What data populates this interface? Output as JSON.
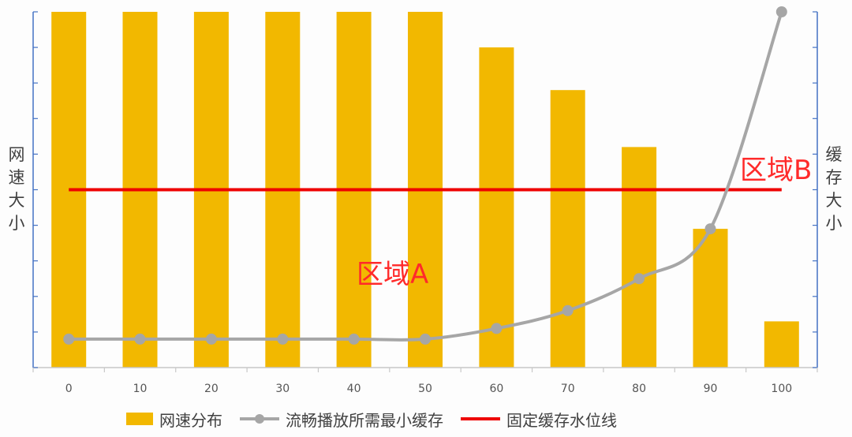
{
  "chart_data": {
    "type": "bar",
    "categories": [
      "0",
      "10",
      "20",
      "30",
      "40",
      "50",
      "60",
      "70",
      "80",
      "90",
      "100"
    ],
    "ylabel_left": "网速大小",
    "ylabel_right": "缓存大小",
    "series": [
      {
        "name": "网速分布",
        "type": "bar",
        "axis": "left",
        "color": "#f2b800",
        "values": [
          10,
          10,
          10,
          10,
          10,
          10,
          9.0,
          7.8,
          6.2,
          3.9,
          1.3
        ]
      },
      {
        "name": "流畅播放所需最小缓存",
        "type": "line",
        "axis": "right",
        "color": "#a6a6a6",
        "markers": true,
        "values": [
          0.8,
          0.8,
          0.8,
          0.8,
          0.8,
          0.8,
          1.1,
          1.6,
          2.5,
          3.9,
          10.0
        ]
      },
      {
        "name": "固定缓存水位线",
        "type": "line",
        "axis": "right",
        "color": "#ee0000",
        "markers": false,
        "values": [
          5,
          5,
          5,
          5,
          5,
          5,
          5,
          5,
          5,
          5,
          5
        ]
      }
    ],
    "ylim_left": [
      0,
      10
    ],
    "ylim_right": [
      0,
      10
    ],
    "ytick_count": 10,
    "grid": false,
    "legend_position": "bottom",
    "annotations": [
      "区域A",
      "区域B"
    ]
  },
  "colors": {
    "axis": "#4472c4",
    "bar": "#f2b800",
    "min_buffer_line": "#a6a6a6",
    "fixed_buffer_line": "#ee0000",
    "region_text": "#ff2a2a"
  }
}
